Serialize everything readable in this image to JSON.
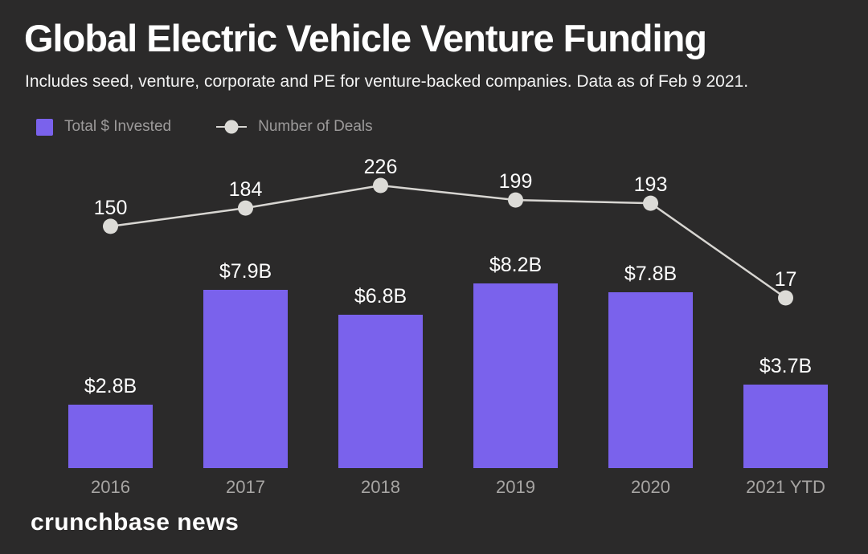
{
  "page": {
    "background_color": "#2b2a2a",
    "accent_color": "#7a62ec",
    "line_color": "#d8d6d2",
    "dot_color": "#dcdbd7"
  },
  "header": {
    "title": "Global Electric Vehicle Venture Funding",
    "subtitle": "Includes seed, venture, corporate and PE for venture-backed companies. Data as of Feb 9 2021."
  },
  "legend": {
    "items": [
      {
        "label": "Total $ Invested",
        "marker": "square",
        "color": "#7a62ec"
      },
      {
        "label": "Number of Deals",
        "marker": "dot-line",
        "color": "#dcdbd7"
      }
    ]
  },
  "footer": {
    "brand": "crunchbase news"
  },
  "chart_data": {
    "type": "bar",
    "subtype": "bar+line combo",
    "title": "Global Electric Vehicle Venture Funding",
    "subtitle": "Includes seed, venture, corporate and PE for venture-backed companies. Data as of Feb 9 2021.",
    "categories": [
      "2016",
      "2017",
      "2018",
      "2019",
      "2020",
      "2021 YTD"
    ],
    "series": [
      {
        "name": "Total $ Invested",
        "type": "bar",
        "unit": "USD billions",
        "values": [
          2.8,
          7.9,
          6.8,
          8.2,
          7.8,
          3.7
        ],
        "labels": [
          "$2.8B",
          "$7.9B",
          "$6.8B",
          "$8.2B",
          "$7.8B",
          "$3.7B"
        ],
        "color": "#7a62ec"
      },
      {
        "name": "Number of Deals",
        "type": "line",
        "values": [
          150,
          184,
          226,
          199,
          193,
          17
        ],
        "color": "#d8d6d2",
        "dot_color": "#dcdbd7"
      }
    ],
    "grid": false,
    "axes_shown": false,
    "value_labels_shown": true,
    "legend_position": "top-left",
    "source_brand": "crunchbase news"
  }
}
